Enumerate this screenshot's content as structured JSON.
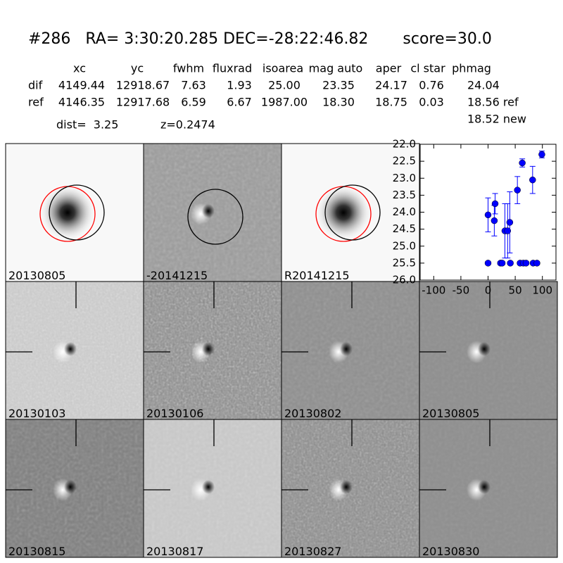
{
  "title": "#286   RA= 3:30:20.285 DEC=-28:22:46.82       score=30.0",
  "table": {
    "columns": [
      "xc",
      "yc",
      "fwhm",
      "fluxrad",
      "isoarea",
      "mag auto",
      "aper",
      "cl star",
      "phmag"
    ],
    "rows": [
      [
        "dif",
        "4149.44",
        "12918.67",
        "7.63",
        "1.93",
        "25.00",
        "23.35",
        "24.17",
        "0.76",
        "24.04"
      ],
      [
        "ref",
        "4146.35",
        "12917.68",
        "6.59",
        "6.67",
        "1987.00",
        "18.30",
        "18.75",
        "0.03",
        "18.56 ref"
      ]
    ],
    "note": "18.52 new"
  },
  "dist": "dist=  3.25",
  "redshift": "z=0.2474",
  "panels": [
    {
      "label": "20130805",
      "color": "#000000"
    },
    {
      "label": "-20141215",
      "color": "#000000"
    },
    {
      "label": "R20141215",
      "color": "#000000"
    },
    {
      "label": "20130103",
      "color": "#000000"
    },
    {
      "label": "20130106",
      "color": "#000000"
    },
    {
      "label": "20130802",
      "color": "#000000"
    },
    {
      "label": "20130805",
      "color": "#ff0000"
    },
    {
      "label": "20130815",
      "color": "#000000"
    },
    {
      "label": "20130817",
      "color": "#000000"
    },
    {
      "label": "20130827",
      "color": "#000000"
    },
    {
      "label": "20130830",
      "color": "#000000"
    }
  ],
  "chart_data": {
    "type": "scatter",
    "color": "#0000ff",
    "x": [
      0,
      0,
      11.5,
      13,
      23,
      26,
      31,
      36,
      40,
      41,
      54,
      59,
      63,
      65,
      70,
      82,
      83,
      90,
      99
    ],
    "values": [
      24.08,
      25.5,
      24.25,
      23.75,
      25.5,
      25.5,
      24.55,
      24.55,
      24.3,
      25.5,
      23.35,
      25.5,
      22.55,
      25.5,
      25.5,
      23.05,
      25.5,
      25.5,
      22.3
    ],
    "errors": [
      0.5,
      0.05,
      0.45,
      0.3,
      0.05,
      0.05,
      0.8,
      0.8,
      0.9,
      0.05,
      0.4,
      0.05,
      0.12,
      0.05,
      0.05,
      0.4,
      0.05,
      0.05,
      0.1
    ],
    "xlim": [
      -125,
      125
    ],
    "ylim": [
      26,
      22
    ],
    "xticks": [
      -100,
      -50,
      0,
      50,
      100
    ],
    "yticks": [
      {
        "value": 22,
        "label": "22.0"
      },
      22.5,
      {
        "value": 23,
        "label": "23.0"
      },
      23.5,
      {
        "value": 24,
        "label": "24.0"
      },
      24.5,
      {
        "value": 25,
        "label": "25.0"
      },
      25.5,
      {
        "value": 26,
        "label": "26.0"
      }
    ]
  }
}
